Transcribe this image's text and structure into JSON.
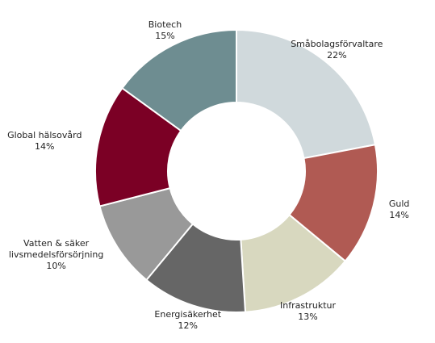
{
  "chart_data": {
    "type": "donut",
    "categories": [
      "Småbolagsförvaltare",
      "Guld",
      "Infrastruktur",
      "Energisäkerhet",
      "Vatten & säker\nlivsmedelsförsörjning",
      "Global hälsovård",
      "Biotech"
    ],
    "values": [
      22,
      14,
      13,
      12,
      10,
      14,
      15
    ],
    "value_labels": [
      "22%",
      "14%",
      "13%",
      "12%",
      "10%",
      "14%",
      "15%"
    ],
    "colors": [
      "#d0d9dc",
      "#b05a53",
      "#d8d8bf",
      "#666666",
      "#999999",
      "#7b0025",
      "#6e8d91"
    ]
  }
}
